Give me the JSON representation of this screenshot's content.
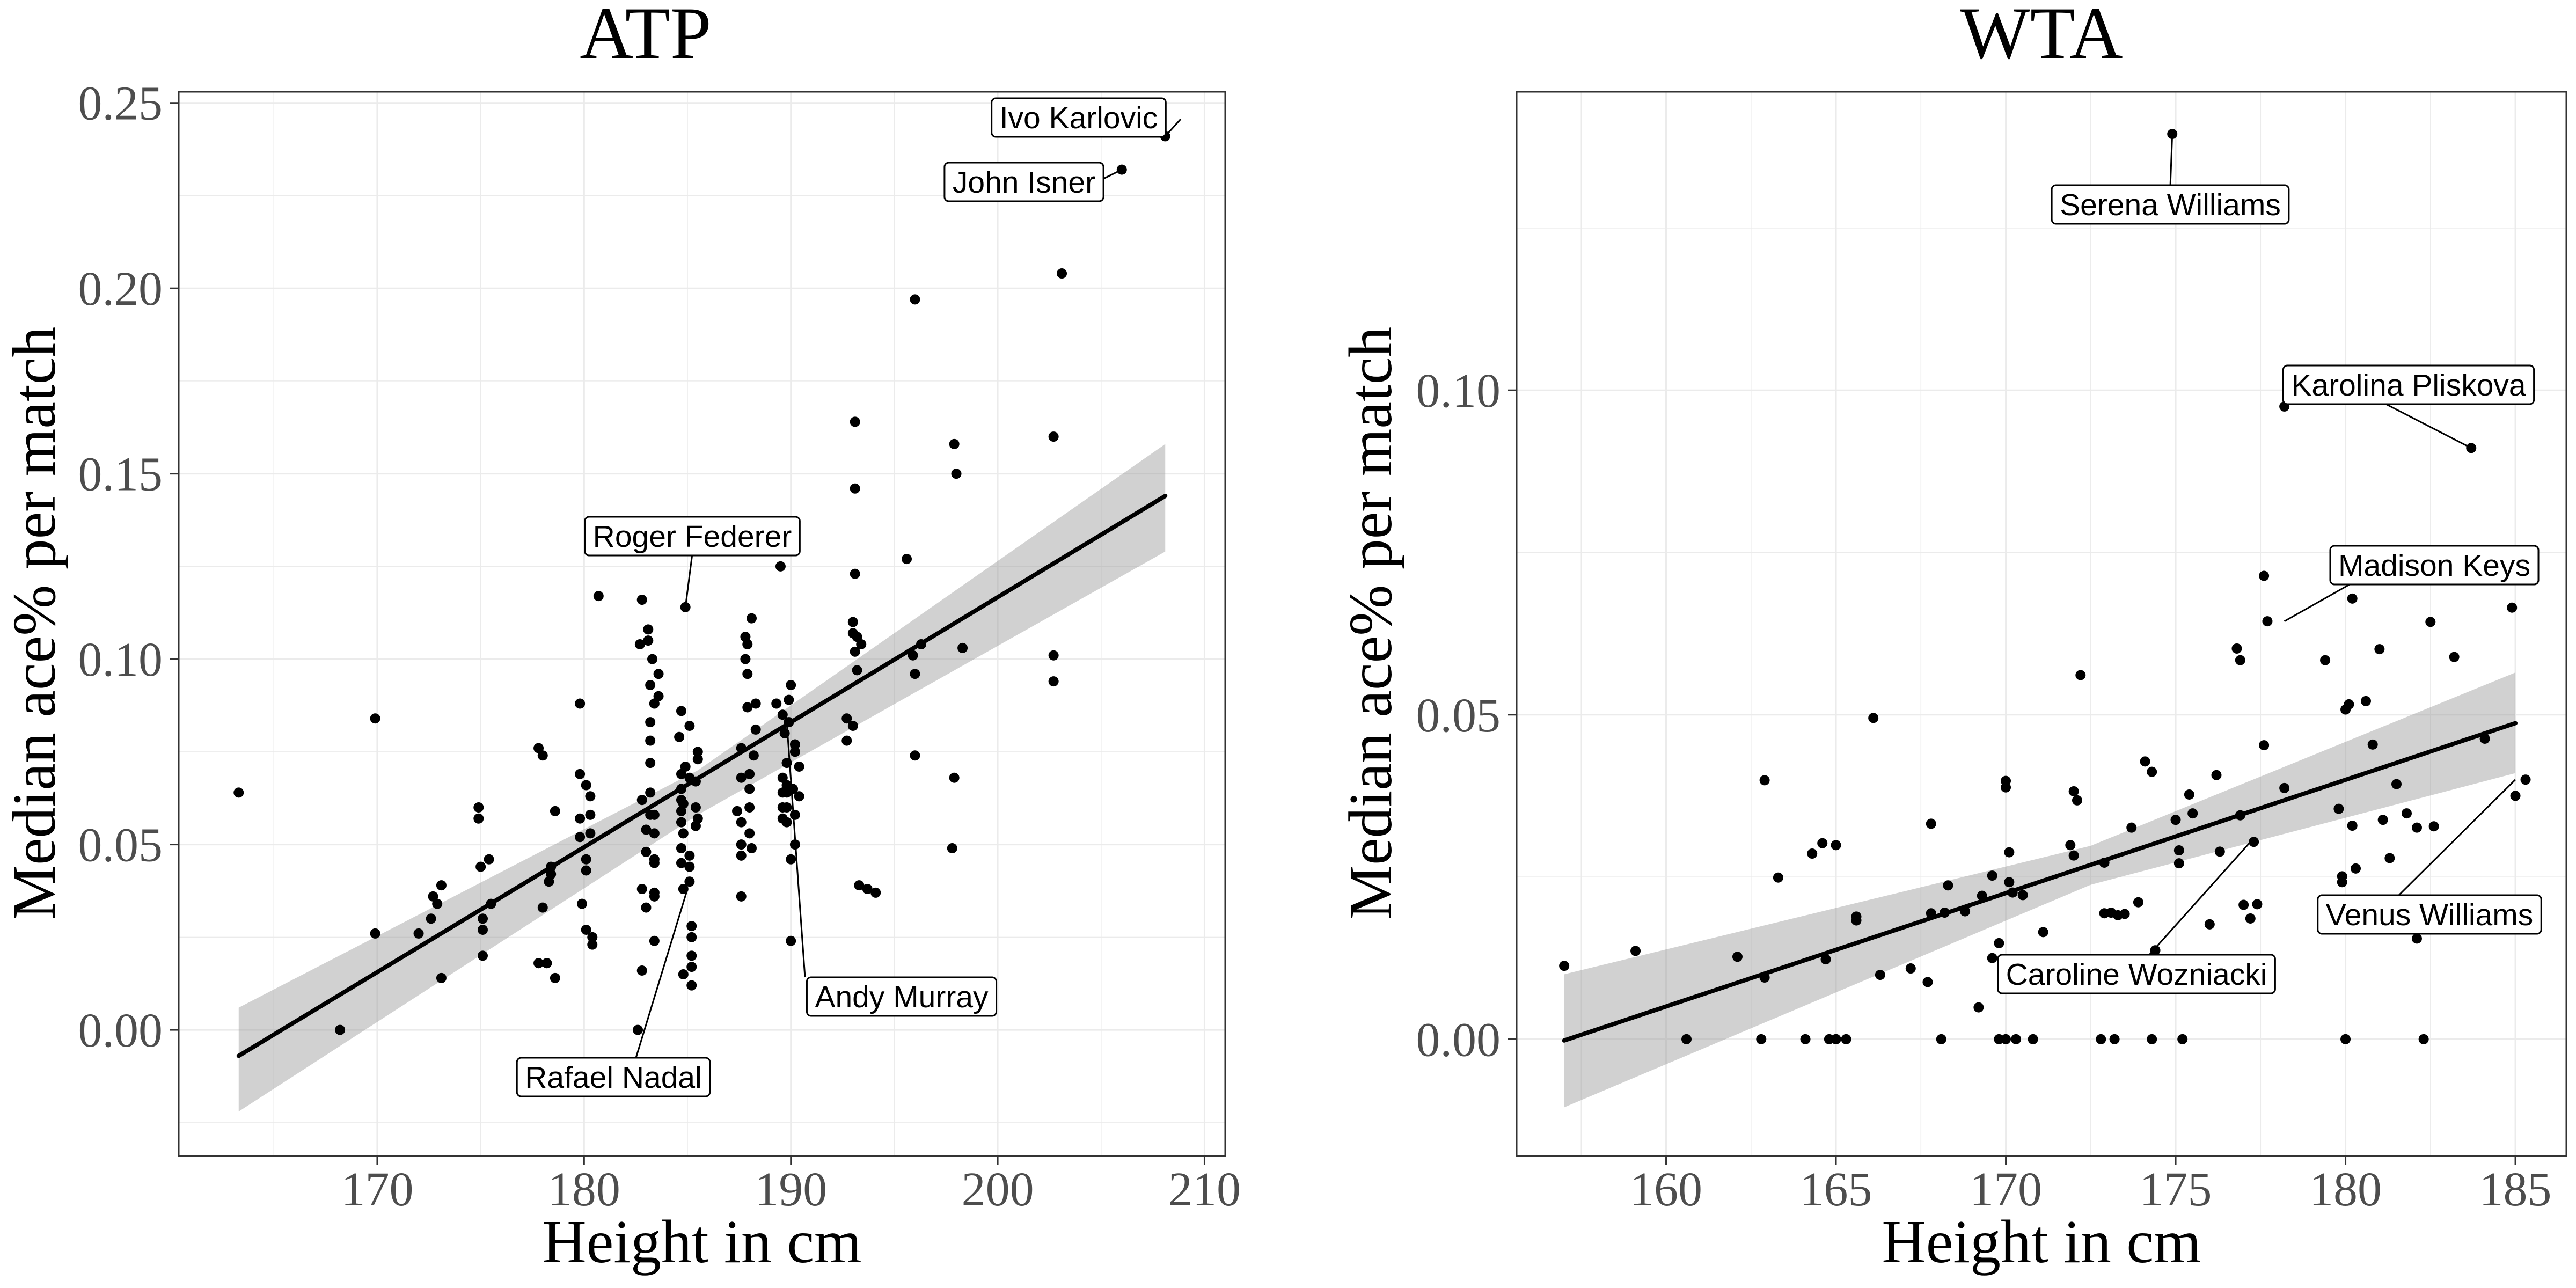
{
  "chart_data": [
    {
      "type": "scatter",
      "title": "ATP",
      "xlabel": "Height in cm",
      "ylabel": "Median ace% per match",
      "xlim": [
        160.4,
        211
      ],
      "ylim": [
        -0.034,
        0.253
      ],
      "xticks": [
        170,
        180,
        190,
        200,
        210
      ],
      "yticks": [
        0.0,
        0.05,
        0.1,
        0.15,
        0.2,
        0.25
      ],
      "xtick_labels": [
        "170",
        "180",
        "190",
        "200",
        "210"
      ],
      "ytick_labels": [
        "0.00",
        "0.05",
        "0.10",
        "0.15",
        "0.20",
        "0.25"
      ],
      "grid": true,
      "legend": "none",
      "trend": {
        "x": [
          163.3,
          208.1
        ],
        "y": [
          -0.007,
          0.144
        ]
      },
      "band": {
        "x": [
          163.3,
          185.5,
          208.1
        ],
        "lower": [
          -0.022,
          0.058,
          0.129
        ],
        "upper": [
          0.006,
          0.07,
          0.158
        ]
      },
      "points": [
        [
          163.3,
          0.064
        ],
        [
          168.2,
          0.0
        ],
        [
          169.9,
          0.084
        ],
        [
          169.9,
          0.026
        ],
        [
          172.0,
          0.026
        ],
        [
          172.6,
          0.03
        ],
        [
          172.7,
          0.036
        ],
        [
          172.9,
          0.034
        ],
        [
          173.1,
          0.039
        ],
        [
          173.1,
          0.014
        ],
        [
          174.9,
          0.06
        ],
        [
          174.9,
          0.057
        ],
        [
          175.0,
          0.044
        ],
        [
          175.1,
          0.03
        ],
        [
          175.1,
          0.027
        ],
        [
          175.1,
          0.02
        ],
        [
          175.4,
          0.046
        ],
        [
          175.5,
          0.034
        ],
        [
          177.8,
          0.076
        ],
        [
          177.8,
          0.018
        ],
        [
          178.0,
          0.074
        ],
        [
          178.0,
          0.033
        ],
        [
          178.2,
          0.018
        ],
        [
          178.3,
          0.04
        ],
        [
          178.4,
          0.042
        ],
        [
          178.4,
          0.044
        ],
        [
          178.6,
          0.014
        ],
        [
          178.6,
          0.059
        ],
        [
          179.8,
          0.088
        ],
        [
          179.8,
          0.069
        ],
        [
          179.8,
          0.057
        ],
        [
          179.8,
          0.052
        ],
        [
          179.9,
          0.034
        ],
        [
          180.1,
          0.066
        ],
        [
          180.1,
          0.046
        ],
        [
          180.1,
          0.027
        ],
        [
          180.1,
          0.043
        ],
        [
          180.3,
          0.058
        ],
        [
          180.3,
          0.053
        ],
        [
          180.4,
          0.025
        ],
        [
          180.4,
          0.023
        ],
        [
          180.3,
          0.063
        ],
        [
          180.7,
          0.117
        ],
        [
          182.6,
          0.0
        ],
        [
          182.7,
          0.104
        ],
        [
          182.8,
          0.116
        ],
        [
          183.1,
          0.108
        ],
        [
          183.1,
          0.105
        ],
        [
          182.8,
          0.016
        ],
        [
          182.8,
          0.038
        ],
        [
          182.8,
          0.062
        ],
        [
          183.0,
          0.033
        ],
        [
          183.0,
          0.048
        ],
        [
          183.0,
          0.054
        ],
        [
          183.2,
          0.058
        ],
        [
          183.2,
          0.064
        ],
        [
          183.2,
          0.072
        ],
        [
          183.2,
          0.078
        ],
        [
          183.2,
          0.083
        ],
        [
          183.2,
          0.093
        ],
        [
          183.3,
          0.1
        ],
        [
          183.4,
          0.088
        ],
        [
          183.4,
          0.058
        ],
        [
          183.4,
          0.053
        ],
        [
          183.4,
          0.046
        ],
        [
          183.4,
          0.037
        ],
        [
          183.4,
          0.024
        ],
        [
          183.4,
          0.036
        ],
        [
          183.4,
          0.045
        ],
        [
          183.6,
          0.09
        ],
        [
          183.6,
          0.096
        ],
        [
          184.6,
          0.079
        ],
        [
          184.7,
          0.086
        ],
        [
          184.7,
          0.069
        ],
        [
          184.7,
          0.065
        ],
        [
          184.7,
          0.062
        ],
        [
          184.7,
          0.059
        ],
        [
          184.7,
          0.056
        ],
        [
          184.7,
          0.049
        ],
        [
          184.7,
          0.045
        ],
        [
          184.8,
          0.038
        ],
        [
          184.8,
          0.015
        ],
        [
          184.8,
          0.061
        ],
        [
          184.8,
          0.053
        ],
        [
          184.9,
          0.071
        ],
        [
          184.9,
          0.114
        ],
        [
          185.1,
          0.082
        ],
        [
          185.1,
          0.068
        ],
        [
          185.1,
          0.047
        ],
        [
          185.1,
          0.044
        ],
        [
          185.1,
          0.04
        ],
        [
          185.2,
          0.025
        ],
        [
          185.2,
          0.02
        ],
        [
          185.2,
          0.012
        ],
        [
          185.2,
          0.017
        ],
        [
          185.2,
          0.028
        ],
        [
          185.4,
          0.06
        ],
        [
          185.4,
          0.055
        ],
        [
          185.4,
          0.067
        ],
        [
          185.5,
          0.057
        ],
        [
          185.5,
          0.075
        ],
        [
          185.5,
          0.073
        ],
        [
          187.4,
          0.059
        ],
        [
          187.6,
          0.068
        ],
        [
          187.6,
          0.076
        ],
        [
          187.6,
          0.036
        ],
        [
          187.6,
          0.056
        ],
        [
          187.6,
          0.047
        ],
        [
          187.6,
          0.05
        ],
        [
          187.8,
          0.1
        ],
        [
          187.8,
          0.106
        ],
        [
          187.9,
          0.104
        ],
        [
          187.9,
          0.096
        ],
        [
          187.9,
          0.087
        ],
        [
          188.0,
          0.069
        ],
        [
          188.0,
          0.065
        ],
        [
          188.0,
          0.06
        ],
        [
          188.0,
          0.053
        ],
        [
          188.1,
          0.049
        ],
        [
          188.2,
          0.074
        ],
        [
          188.1,
          0.111
        ],
        [
          188.3,
          0.081
        ],
        [
          188.3,
          0.088
        ],
        [
          189.3,
          0.088
        ],
        [
          189.5,
          0.125
        ],
        [
          189.6,
          0.085
        ],
        [
          189.7,
          0.08
        ],
        [
          189.6,
          0.068
        ],
        [
          189.6,
          0.064
        ],
        [
          189.6,
          0.06
        ],
        [
          189.6,
          0.057
        ],
        [
          189.8,
          0.056
        ],
        [
          189.8,
          0.06
        ],
        [
          189.8,
          0.064
        ],
        [
          189.8,
          0.066
        ],
        [
          189.8,
          0.072
        ],
        [
          189.9,
          0.089
        ],
        [
          189.9,
          0.083
        ],
        [
          190.0,
          0.046
        ],
        [
          190.0,
          0.024
        ],
        [
          190.0,
          0.093
        ],
        [
          190.1,
          0.065
        ],
        [
          190.2,
          0.075
        ],
        [
          190.2,
          0.058
        ],
        [
          190.2,
          0.077
        ],
        [
          190.2,
          0.05
        ],
        [
          190.4,
          0.071
        ],
        [
          190.4,
          0.063
        ],
        [
          192.7,
          0.084
        ],
        [
          192.7,
          0.078
        ],
        [
          193.0,
          0.082
        ],
        [
          193.0,
          0.11
        ],
        [
          193.0,
          0.107
        ],
        [
          193.1,
          0.164
        ],
        [
          193.1,
          0.146
        ],
        [
          193.1,
          0.123
        ],
        [
          193.1,
          0.102
        ],
        [
          193.2,
          0.097
        ],
        [
          193.2,
          0.106
        ],
        [
          193.3,
          0.039
        ],
        [
          193.4,
          0.104
        ],
        [
          193.7,
          0.038
        ],
        [
          194.1,
          0.037
        ],
        [
          195.6,
          0.127
        ],
        [
          195.9,
          0.101
        ],
        [
          196.0,
          0.096
        ],
        [
          196.0,
          0.074
        ],
        [
          196.0,
          0.197
        ],
        [
          196.3,
          0.104
        ],
        [
          197.8,
          0.049
        ],
        [
          197.9,
          0.068
        ],
        [
          197.9,
          0.158
        ],
        [
          198.0,
          0.15
        ],
        [
          198.3,
          0.103
        ],
        [
          202.7,
          0.16
        ],
        [
          202.7,
          0.101
        ],
        [
          202.7,
          0.094
        ],
        [
          203.1,
          0.204
        ],
        [
          206.0,
          0.232
        ],
        [
          208.1,
          0.241
        ]
      ],
      "annotations": [
        {
          "text": "Ivo Karlovic",
          "x": 208.1,
          "y": 0.241
        },
        {
          "text": "John Isner",
          "x": 206.0,
          "y": 0.232
        },
        {
          "text": "Roger Federer",
          "x": 184.9,
          "y": 0.114
        },
        {
          "text": "Rafael Nadal",
          "x": 185.0,
          "y": 0.038
        },
        {
          "text": "Andy Murray",
          "x": 189.8,
          "y": 0.083
        }
      ]
    },
    {
      "type": "scatter",
      "title": "WTA",
      "xlabel": "Height in cm",
      "ylabel": "Median ace% per match",
      "xlim": [
        155.6,
        186.5
      ],
      "ylim": [
        -0.018,
        0.146
      ],
      "xticks": [
        160,
        165,
        170,
        175,
        180,
        185
      ],
      "yticks": [
        0.0,
        0.05,
        0.1
      ],
      "xtick_labels": [
        "160",
        "165",
        "170",
        "175",
        "180",
        "185"
      ],
      "ytick_labels": [
        "0.00",
        "0.05",
        "0.10"
      ],
      "grid": true,
      "legend": "none",
      "trend": {
        "x": [
          157.0,
          185.0
        ],
        "y": [
          -0.0002,
          0.0487
        ]
      },
      "band": {
        "x": [
          157.0,
          172.5,
          185.0
        ],
        "lower": [
          -0.0105,
          0.0238,
          0.041
        ],
        "upper": [
          0.01,
          0.0298,
          0.0565
        ]
      },
      "points": [
        [
          157.0,
          0.0113
        ],
        [
          159.1,
          0.0136
        ],
        [
          160.6,
          0.0
        ],
        [
          162.1,
          0.0127
        ],
        [
          162.8,
          0.0
        ],
        [
          162.9,
          0.0399
        ],
        [
          162.9,
          0.0095
        ],
        [
          163.3,
          0.0249
        ],
        [
          164.1,
          0.0
        ],
        [
          164.3,
          0.0286
        ],
        [
          164.6,
          0.0302
        ],
        [
          164.7,
          0.0123
        ],
        [
          164.8,
          0.0
        ],
        [
          165.0,
          0.0
        ],
        [
          165.0,
          0.0
        ],
        [
          165.0,
          0.0299
        ],
        [
          165.3,
          0.0
        ],
        [
          165.6,
          0.0189
        ],
        [
          165.6,
          0.0183
        ],
        [
          166.1,
          0.0495
        ],
        [
          166.3,
          0.0099
        ],
        [
          167.2,
          0.0109
        ],
        [
          167.7,
          0.0088
        ],
        [
          167.8,
          0.0194
        ],
        [
          167.8,
          0.0332
        ],
        [
          168.1,
          0.0
        ],
        [
          168.2,
          0.0195
        ],
        [
          168.3,
          0.0237
        ],
        [
          168.8,
          0.0197
        ],
        [
          169.2,
          0.0049
        ],
        [
          169.3,
          0.0221
        ],
        [
          169.6,
          0.0252
        ],
        [
          169.6,
          0.0125
        ],
        [
          169.8,
          0.0148
        ],
        [
          169.8,
          0.0
        ],
        [
          170.0,
          0.0
        ],
        [
          170.0,
          0.0398
        ],
        [
          170.0,
          0.0388
        ],
        [
          170.1,
          0.0242
        ],
        [
          170.1,
          0.0288
        ],
        [
          170.2,
          0.0226
        ],
        [
          170.3,
          0.0
        ],
        [
          170.5,
          0.0222
        ],
        [
          170.8,
          0.0
        ],
        [
          171.1,
          0.0165
        ],
        [
          171.9,
          0.0299
        ],
        [
          172.0,
          0.0283
        ],
        [
          172.0,
          0.0382
        ],
        [
          172.1,
          0.0368
        ],
        [
          172.2,
          0.0561
        ],
        [
          172.8,
          0.0
        ],
        [
          172.9,
          0.0272
        ],
        [
          172.9,
          0.0194
        ],
        [
          173.1,
          0.0195
        ],
        [
          173.2,
          0.0
        ],
        [
          173.3,
          0.0191
        ],
        [
          173.5,
          0.0193
        ],
        [
          173.5,
          0.0113
        ],
        [
          173.7,
          0.0326
        ],
        [
          173.9,
          0.0211
        ],
        [
          174.1,
          0.0428
        ],
        [
          174.3,
          0.0
        ],
        [
          174.3,
          0.0412
        ],
        [
          174.4,
          0.0137
        ],
        [
          174.9,
          0.1395
        ],
        [
          175.0,
          0.0338
        ],
        [
          175.1,
          0.0291
        ],
        [
          175.1,
          0.0271
        ],
        [
          175.2,
          0.0
        ],
        [
          175.4,
          0.0377
        ],
        [
          175.5,
          0.0348
        ],
        [
          176.0,
          0.0177
        ],
        [
          176.2,
          0.0407
        ],
        [
          176.3,
          0.0289
        ],
        [
          176.8,
          0.0602
        ],
        [
          176.9,
          0.0584
        ],
        [
          176.9,
          0.0345
        ],
        [
          177.0,
          0.0207
        ],
        [
          177.2,
          0.0186
        ],
        [
          177.3,
          0.0304
        ],
        [
          177.4,
          0.0208
        ],
        [
          177.6,
          0.0714
        ],
        [
          177.6,
          0.0453
        ],
        [
          177.7,
          0.0644
        ],
        [
          178.2,
          0.0975
        ],
        [
          178.2,
          0.0387
        ],
        [
          179.4,
          0.0584
        ],
        [
          179.8,
          0.0355
        ],
        [
          179.9,
          0.0716
        ],
        [
          179.9,
          0.0251
        ],
        [
          179.9,
          0.0242
        ],
        [
          180.0,
          0.0
        ],
        [
          180.0,
          0.0508
        ],
        [
          180.1,
          0.0516
        ],
        [
          180.2,
          0.0679
        ],
        [
          180.2,
          0.0329
        ],
        [
          180.3,
          0.0263
        ],
        [
          180.6,
          0.0521
        ],
        [
          180.8,
          0.0454
        ],
        [
          181.0,
          0.0601
        ],
        [
          181.1,
          0.0338
        ],
        [
          181.3,
          0.0279
        ],
        [
          181.5,
          0.0393
        ],
        [
          181.6,
          0.0206
        ],
        [
          181.8,
          0.0348
        ],
        [
          182.1,
          0.0155
        ],
        [
          182.1,
          0.0326
        ],
        [
          182.3,
          0.0
        ],
        [
          182.5,
          0.0643
        ],
        [
          182.6,
          0.0328
        ],
        [
          183.2,
          0.0589
        ],
        [
          183.7,
          0.0911
        ],
        [
          184.1,
          0.0463
        ],
        [
          184.9,
          0.0665
        ],
        [
          185.0,
          0.0375
        ],
        [
          185.3,
          0.04
        ]
      ],
      "annotations": [
        {
          "text": "Serena Williams",
          "x": 174.9,
          "y": 0.1395
        },
        {
          "text": "Karolina Pliskova",
          "x": 183.7,
          "y": 0.0911
        },
        {
          "text": "Madison Keys",
          "x": 178.2,
          "y": 0.0644
        },
        {
          "text": "Caroline Wozniacki",
          "x": 177.2,
          "y": 0.0304
        },
        {
          "text": "Venus Williams",
          "x": 185.0,
          "y": 0.04
        }
      ]
    }
  ]
}
